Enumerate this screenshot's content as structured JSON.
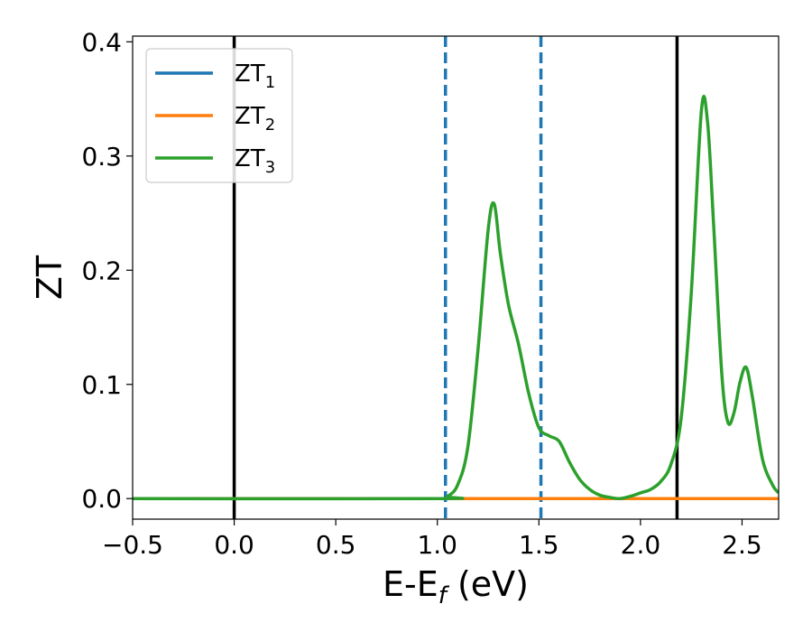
{
  "chart_data": {
    "type": "line",
    "title": "",
    "xlabel": "E-E",
    "xlabel_subscript": "f",
    "xlabel_unit": " (eV)",
    "ylabel": "ZT",
    "xlim": [
      -0.5,
      2.68
    ],
    "ylim": [
      -0.018,
      0.405
    ],
    "x_ticks": [
      -0.5,
      0.0,
      0.5,
      1.0,
      1.5,
      2.0,
      2.5
    ],
    "x_tick_labels": [
      "−0.5",
      "0.0",
      "0.5",
      "1.0",
      "1.5",
      "2.0",
      "2.5"
    ],
    "y_ticks": [
      0.0,
      0.1,
      0.2,
      0.3,
      0.4
    ],
    "y_tick_labels": [
      "0.0",
      "0.1",
      "0.2",
      "0.3",
      "0.4"
    ],
    "grid": false,
    "legend_position": "top-left",
    "series": [
      {
        "name": "ZT",
        "name_subscript": "1",
        "color": "#1f77b4",
        "x": [
          -0.5,
          2.68
        ],
        "y": [
          0.0,
          0.0
        ]
      },
      {
        "name": "ZT",
        "name_subscript": "2",
        "color": "#ff7f0e",
        "x": [
          -0.5,
          2.68
        ],
        "y": [
          0.0,
          0.0
        ]
      },
      {
        "name": "ZT",
        "name_subscript": "3",
        "color": "#2ca02c",
        "x": [
          -0.5,
          1.0,
          1.05,
          1.1,
          1.15,
          1.2,
          1.25,
          1.28,
          1.31,
          1.35,
          1.4,
          1.45,
          1.5,
          1.55,
          1.6,
          1.65,
          1.7,
          1.75,
          1.8,
          1.85,
          1.9,
          1.95,
          2.0,
          2.05,
          2.1,
          2.15,
          2.2,
          2.25,
          2.3,
          2.33,
          2.36,
          2.4,
          2.43,
          2.46,
          2.49,
          2.52,
          2.55,
          2.6,
          2.65,
          2.68
        ],
        "y": [
          0.0,
          0.0,
          0.002,
          0.012,
          0.045,
          0.13,
          0.235,
          0.258,
          0.215,
          0.17,
          0.135,
          0.092,
          0.062,
          0.055,
          0.05,
          0.032,
          0.017,
          0.008,
          0.003,
          0.001,
          0.0,
          0.002,
          0.005,
          0.008,
          0.015,
          0.03,
          0.07,
          0.18,
          0.34,
          0.33,
          0.24,
          0.11,
          0.067,
          0.075,
          0.102,
          0.115,
          0.09,
          0.035,
          0.012,
          0.005
        ]
      }
    ],
    "vertical_lines": [
      {
        "x": 0.0,
        "style": "solid",
        "color": "#000000"
      },
      {
        "x": 2.18,
        "style": "solid",
        "color": "#000000"
      },
      {
        "x": 1.04,
        "style": "dashed",
        "color": "#1f77b4"
      },
      {
        "x": 1.51,
        "style": "dashed",
        "color": "#1f77b4"
      }
    ]
  }
}
